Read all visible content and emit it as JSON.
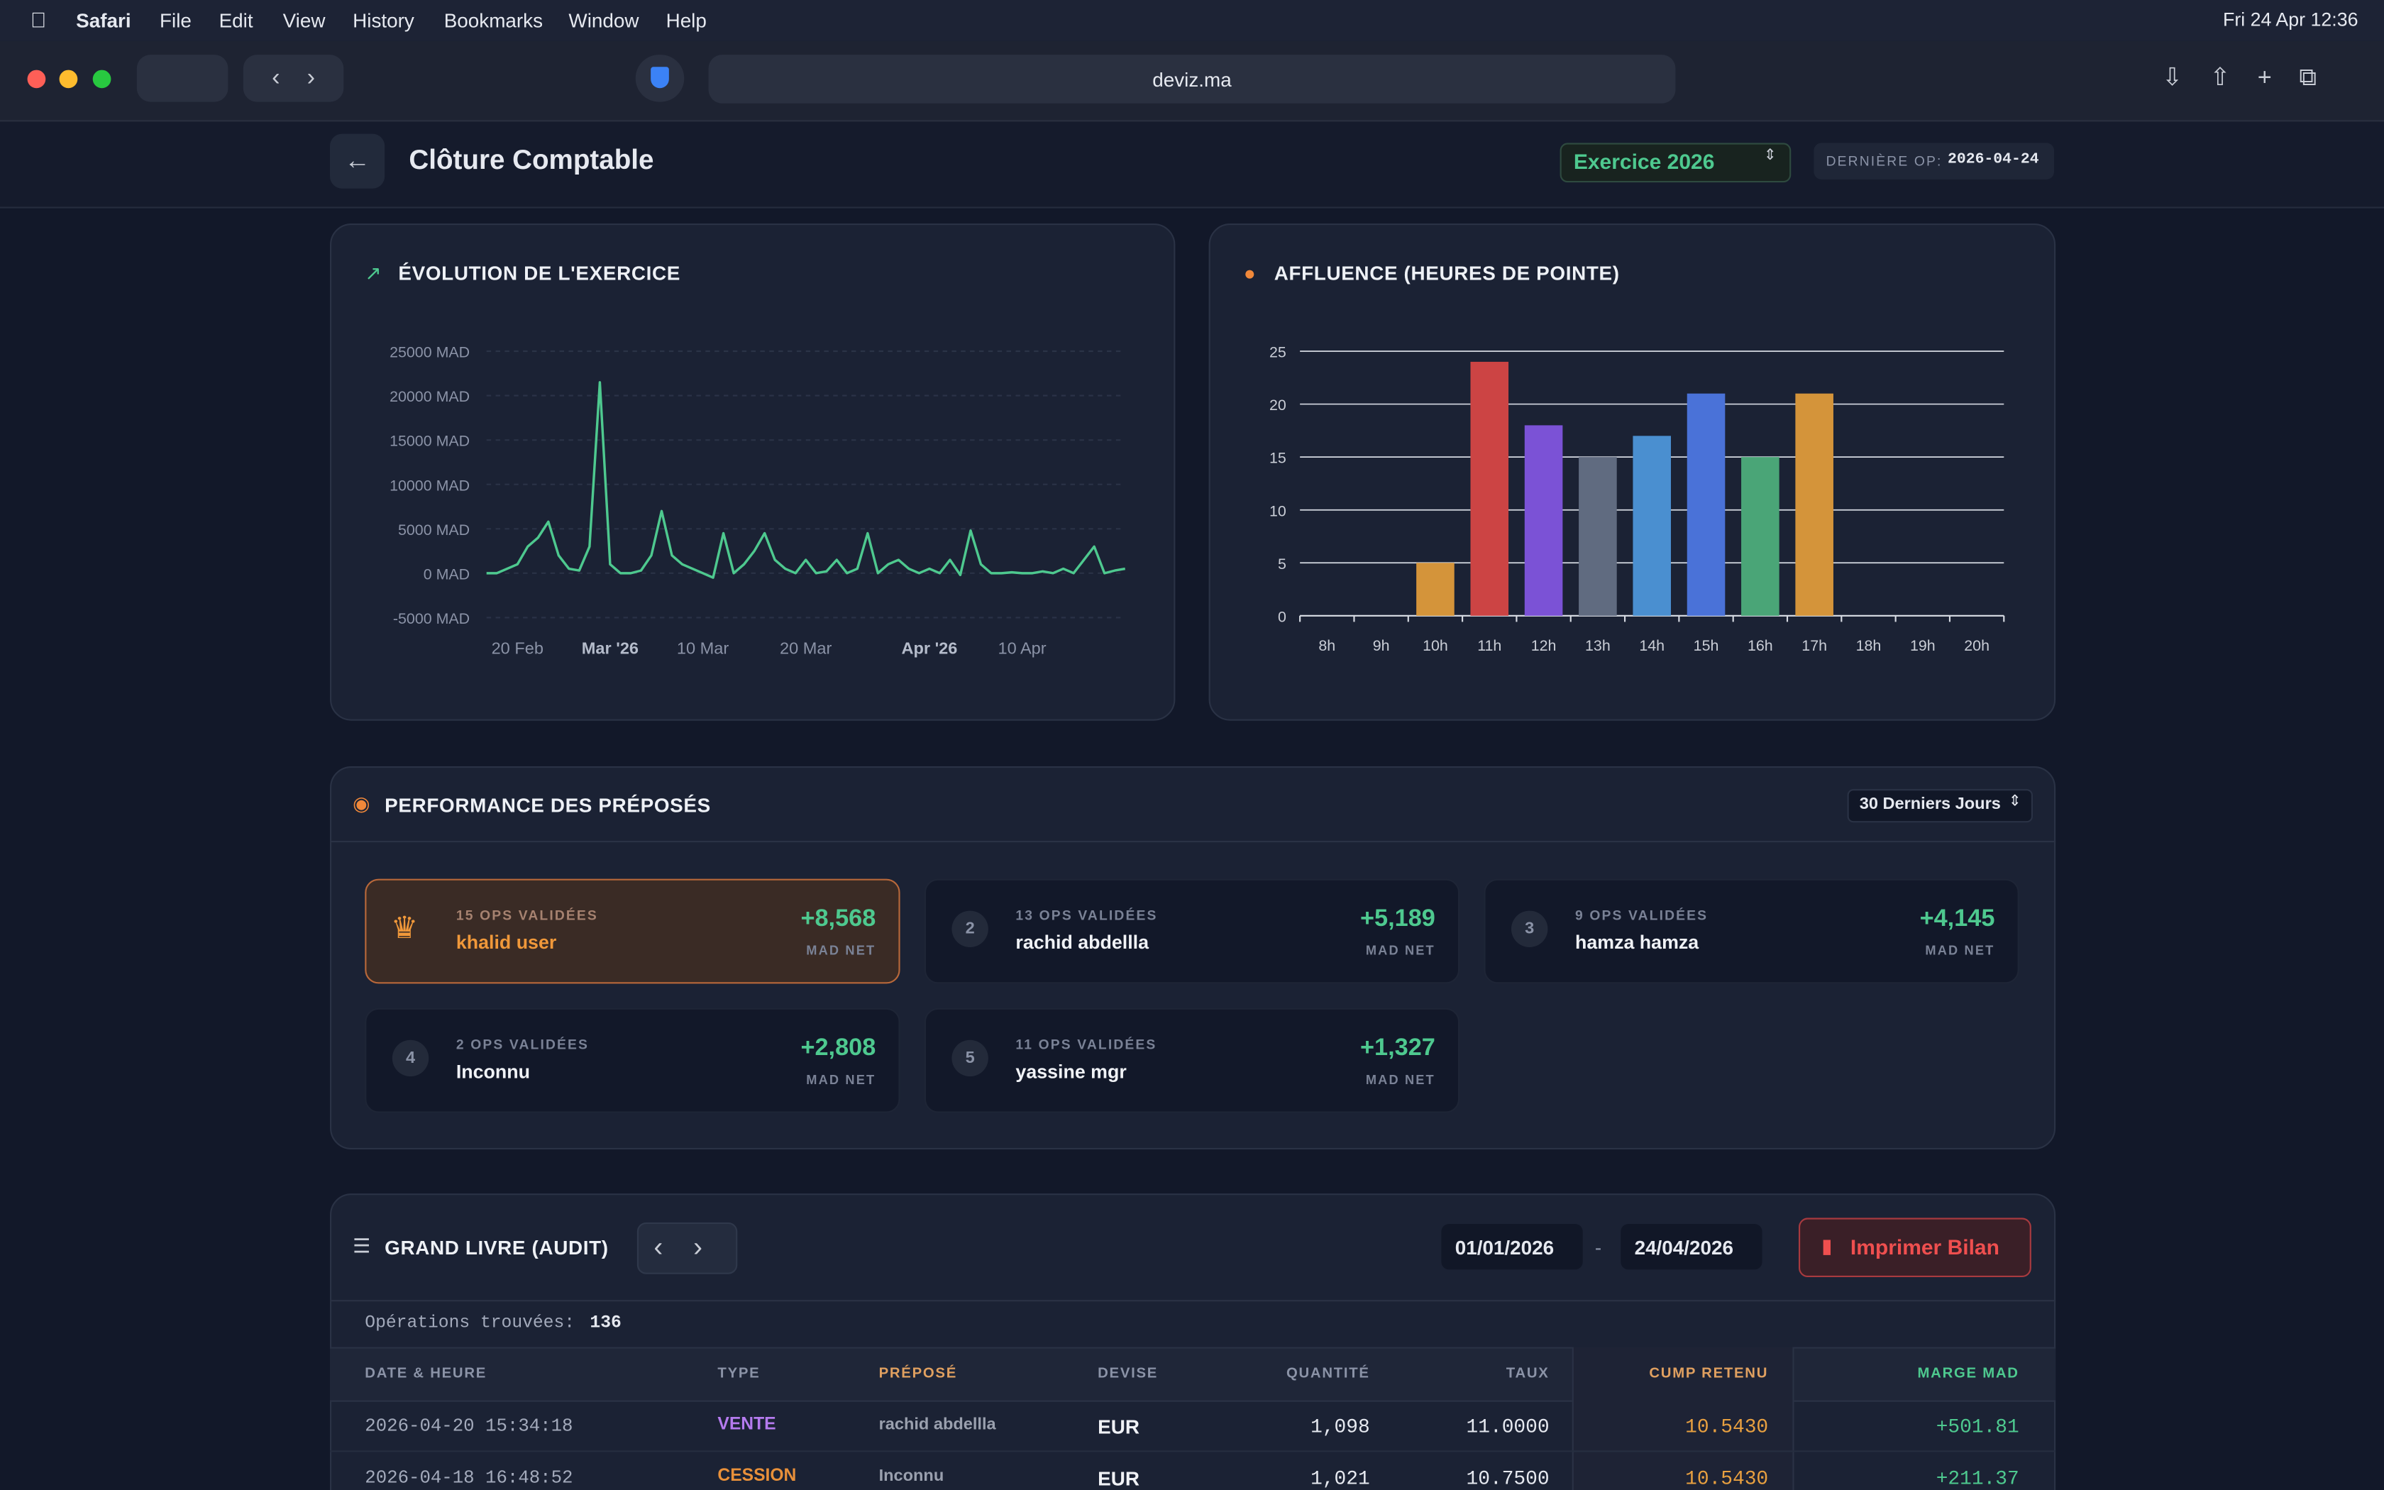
{
  "menubar": {
    "items": [
      "Safari",
      "File",
      "Edit",
      "View",
      "History",
      "Bookmarks",
      "Window",
      "Help"
    ],
    "clock": "Fri 24 Apr 12:36"
  },
  "browser": {
    "url": "deviz.ma"
  },
  "header": {
    "title": "Clôture Comptable",
    "exercise": "Exercice 2026",
    "last_op_label": "DERNIÈRE OP:",
    "last_op_value": "2026-04-24"
  },
  "chart_data": [
    {
      "type": "line",
      "title": "ÉVOLUTION DE L'EXERCICE",
      "x": [
        "2026-02-17",
        "2026-02-18",
        "2026-02-19",
        "2026-02-20",
        "2026-02-21",
        "2026-02-22",
        "2026-02-23",
        "2026-02-24",
        "2026-02-25",
        "2026-02-26",
        "2026-02-27",
        "2026-02-28",
        "2026-03-01",
        "2026-03-02",
        "2026-03-03",
        "2026-03-04",
        "2026-03-05",
        "2026-03-06",
        "2026-03-07",
        "2026-03-08",
        "2026-03-09",
        "2026-03-10",
        "2026-03-11",
        "2026-03-12",
        "2026-03-13",
        "2026-03-14",
        "2026-03-15",
        "2026-03-16",
        "2026-03-17",
        "2026-03-18",
        "2026-03-19",
        "2026-03-20",
        "2026-03-21",
        "2026-03-22",
        "2026-03-23",
        "2026-03-24",
        "2026-03-25",
        "2026-03-26",
        "2026-03-27",
        "2026-03-28",
        "2026-03-29",
        "2026-03-30",
        "2026-03-31",
        "2026-04-01",
        "2026-04-02",
        "2026-04-03",
        "2026-04-04",
        "2026-04-05",
        "2026-04-06",
        "2026-04-07",
        "2026-04-08",
        "2026-04-09",
        "2026-04-10",
        "2026-04-11",
        "2026-04-12",
        "2026-04-13",
        "2026-04-14",
        "2026-04-15",
        "2026-04-16",
        "2026-04-17",
        "2026-04-18",
        "2026-04-19",
        "2026-04-20"
      ],
      "series": [
        {
          "name": "Évolution",
          "color": "#4ec98f",
          "values": [
            0,
            0,
            500,
            1000,
            3000,
            4000,
            5800,
            2000,
            500,
            300,
            3000,
            21500,
            1000,
            0,
            0,
            300,
            2000,
            7000,
            2000,
            1000,
            500,
            0,
            -500,
            4500,
            0,
            1000,
            2500,
            4500,
            1500,
            500,
            0,
            1500,
            0,
            200,
            1500,
            0,
            500,
            4500,
            0,
            1000,
            1500,
            500,
            0,
            500,
            0,
            1500,
            -200,
            4800,
            1000,
            0,
            0,
            100,
            0,
            0,
            200,
            0,
            500,
            0,
            1500,
            3000,
            0,
            300,
            500
          ]
        }
      ],
      "xlim": [
        "2026-02-17",
        "2026-04-20"
      ],
      "xticks": [
        {
          "value": "2026-02-20",
          "label": "20 Feb"
        },
        {
          "value": "2026-03-01",
          "label": "Mar '26"
        },
        {
          "value": "2026-03-10",
          "label": "10 Mar"
        },
        {
          "value": "2026-03-20",
          "label": "20 Mar"
        },
        {
          "value": "2026-04-01",
          "label": "Apr '26"
        },
        {
          "value": "2026-04-10",
          "label": "10 Apr"
        }
      ],
      "ylim": [
        -5000,
        25000
      ],
      "yticks": [
        {
          "value": -5000,
          "label": "-5000 MAD"
        },
        {
          "value": 0,
          "label": "0 MAD"
        },
        {
          "value": 5000,
          "label": "5000 MAD"
        },
        {
          "value": 10000,
          "label": "10000 MAD"
        },
        {
          "value": 15000,
          "label": "15000 MAD"
        },
        {
          "value": 20000,
          "label": "20000 MAD"
        },
        {
          "value": 25000,
          "label": "25000 MAD"
        }
      ],
      "grid": true
    },
    {
      "type": "bar",
      "title": "AFFLUENCE (HEURES DE POINTE)",
      "categories": [
        "8h",
        "9h",
        "10h",
        "11h",
        "12h",
        "13h",
        "14h",
        "15h",
        "16h",
        "17h",
        "18h",
        "19h",
        "20h"
      ],
      "values": [
        0,
        0,
        5,
        24,
        18,
        15,
        17,
        21,
        15,
        21,
        0,
        0,
        0
      ],
      "colors": [
        "#d4943a",
        "#cc4444",
        "#d4943a",
        "#cc4444",
        "#7b52d6",
        "#606b80",
        "#4a8fd0",
        "#4a72d8",
        "#4aa577",
        "#d4943a",
        "#cc4444",
        "#7b52d6",
        "#606b80"
      ],
      "ylim": [
        0,
        25
      ],
      "yticks": [
        0,
        5,
        10,
        15,
        20,
        25
      ],
      "grid": true
    }
  ],
  "performance": {
    "title": "PERFORMANCE DES PRÉPOSÉS",
    "period": "30 Derniers Jours",
    "cards": [
      {
        "ops": "15 OPS VALIDÉES",
        "name": "khalid user",
        "amount": "+8,568",
        "unit": "MAD NET"
      },
      {
        "rank": "2",
        "ops": "13 OPS VALIDÉES",
        "name": "rachid abdellla",
        "amount": "+5,189",
        "unit": "MAD NET"
      },
      {
        "rank": "3",
        "ops": "9 OPS VALIDÉES",
        "name": "hamza hamza",
        "amount": "+4,145",
        "unit": "MAD NET"
      },
      {
        "rank": "4",
        "ops": "2 OPS VALIDÉES",
        "name": "Inconnu",
        "amount": "+2,808",
        "unit": "MAD NET"
      },
      {
        "rank": "5",
        "ops": "11 OPS VALIDÉES",
        "name": "yassine mgr",
        "amount": "+1,327",
        "unit": "MAD NET"
      }
    ]
  },
  "ledger": {
    "title": "GRAND LIVRE (AUDIT)",
    "date_from": "01/01/2026",
    "date_sep": "-",
    "date_to": "24/04/2026",
    "print": "Imprimer Bilan",
    "found_label": "Opérations trouvées:",
    "found_count": "136",
    "table": {
      "columns": [
        "DATE & HEURE",
        "TYPE",
        "PRÉPOSÉ",
        "DEVISE",
        "QUANTITÉ",
        "TAUX",
        "CUMP RETENU",
        "MARGE MAD"
      ],
      "rows": [
        [
          "2026-04-20 15:34:18",
          "VENTE",
          "rachid abdellla",
          "EUR",
          "1,098",
          "11.0000",
          "10.5430",
          "+501.81"
        ],
        [
          "2026-04-18 16:48:52",
          "CESSION",
          "Inconnu",
          "EUR",
          "1,021",
          "10.7500",
          "10.5430",
          "+211.37"
        ]
      ]
    }
  }
}
